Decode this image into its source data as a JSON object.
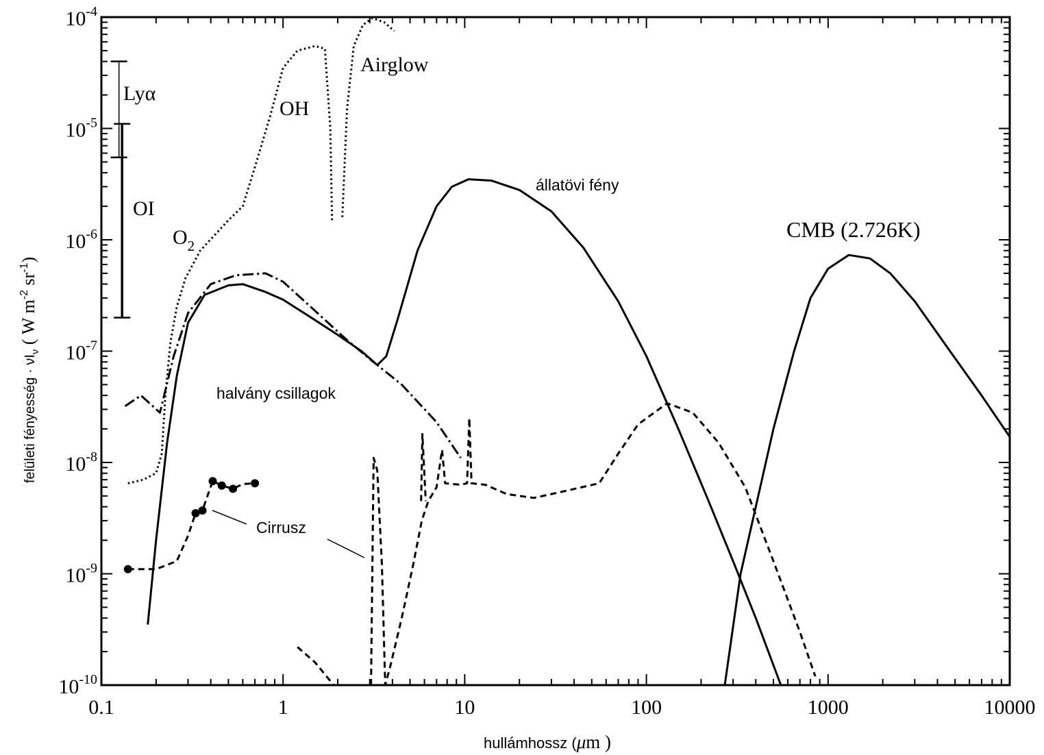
{
  "chart_data": {
    "type": "line",
    "x_scale": "log",
    "y_scale": "log",
    "xlim": [
      0.1,
      10000
    ],
    "ylim": [
      1e-10,
      0.0001
    ],
    "xlabel": {
      "pre": "hullámhossz (",
      "mu": "μ",
      "post": "m )"
    },
    "ylabel": {
      "pre": "felületi fényesség · νI",
      "sub": "ν",
      "mid": " ( W m",
      "sup1": "-2",
      "mid2": " sr",
      "sup2": "-1",
      "post": ")"
    },
    "xticks": [
      {
        "value": 0.1,
        "label": "0.1"
      },
      {
        "value": 1,
        "label": "1"
      },
      {
        "value": 10,
        "label": "10"
      },
      {
        "value": 100,
        "label": "100"
      },
      {
        "value": 1000,
        "label": "1000"
      },
      {
        "value": 10000,
        "label": "10000"
      }
    ],
    "yticks": [
      {
        "value": 0.0001,
        "base": "10",
        "exp": "-4"
      },
      {
        "value": 1e-05,
        "base": "10",
        "exp": "-5"
      },
      {
        "value": 1e-06,
        "base": "10",
        "exp": "-6"
      },
      {
        "value": 1e-07,
        "base": "10",
        "exp": "-7"
      },
      {
        "value": 1e-08,
        "base": "10",
        "exp": "-8"
      },
      {
        "value": 1e-09,
        "base": "10",
        "exp": "-9"
      },
      {
        "value": 1e-10,
        "base": "10",
        "exp": "-10"
      }
    ],
    "annotations": {
      "lya": "Lyα",
      "oi": "OI",
      "o2": {
        "base": "O",
        "sub": "2"
      },
      "oh": "OH",
      "airglow": "Airglow",
      "zodiacal": "állatövi fény",
      "cmb": "CMB (2.726K)",
      "faint_stars": "halvány csillagok",
      "cirrus": "Cirrusz"
    },
    "series": [
      {
        "key": "airglow",
        "style": "dotted",
        "segments": [
          [
            [
              0.14,
              6.5e-09
            ],
            [
              0.17,
              7e-09
            ],
            [
              0.2,
              8e-09
            ],
            [
              0.215,
              1.2e-08
            ],
            [
              0.225,
              4e-08
            ],
            [
              0.24,
              1.2e-07
            ],
            [
              0.26,
              2.5e-07
            ],
            [
              0.29,
              4.5e-07
            ],
            [
              0.35,
              8e-07
            ],
            [
              0.42,
              1.1e-06
            ],
            [
              0.5,
              1.5e-06
            ],
            [
              0.6,
              2e-06
            ],
            [
              0.7,
              4.5e-06
            ],
            [
              0.85,
              1.3e-05
            ],
            [
              1.0,
              3.5e-05
            ],
            [
              1.2,
              5e-05
            ],
            [
              1.5,
              5.5e-05
            ],
            [
              1.7,
              5.2e-05
            ],
            [
              1.82,
              1e-05
            ],
            [
              1.86,
              1.5e-06
            ]
          ],
          [
            [
              2.12,
              1.6e-06
            ],
            [
              2.25,
              1.5e-05
            ],
            [
              2.45,
              5.5e-05
            ],
            [
              2.75,
              8.5e-05
            ],
            [
              3.1,
              9.8e-05
            ],
            [
              3.6,
              9e-05
            ],
            [
              4.1,
              7.5e-05
            ]
          ]
        ]
      },
      {
        "key": "faint_stars",
        "style": "dashdot",
        "segments": [
          [
            [
              0.135,
              3.2e-08
            ],
            [
              0.165,
              4e-08
            ],
            [
              0.21,
              2.8e-08
            ],
            [
              0.25,
              9e-08
            ],
            [
              0.3,
              2.2e-07
            ],
            [
              0.4,
              4e-07
            ],
            [
              0.55,
              4.8e-07
            ],
            [
              0.8,
              5e-07
            ],
            [
              1.0,
              4.2e-07
            ],
            [
              1.5,
              2.3e-07
            ],
            [
              2.2,
              1.3e-07
            ],
            [
              3.0,
              8.5e-08
            ],
            [
              4.5,
              5e-08
            ],
            [
              7.0,
              2.3e-08
            ],
            [
              9.5,
              1.1e-08
            ]
          ]
        ]
      },
      {
        "key": "faint_stars_solid",
        "style": "solid",
        "segments": [
          [
            [
              0.18,
              3.5e-10
            ],
            [
              0.2,
              2e-09
            ],
            [
              0.23,
              1.5e-08
            ],
            [
              0.26,
              6e-08
            ],
            [
              0.3,
              1.8e-07
            ],
            [
              0.37,
              3.2e-07
            ],
            [
              0.5,
              3.9e-07
            ],
            [
              0.6,
              4e-07
            ],
            [
              0.8,
              3.4e-07
            ],
            [
              1.0,
              2.9e-07
            ],
            [
              1.5,
              1.9e-07
            ],
            [
              2.0,
              1.4e-07
            ],
            [
              2.7,
              1e-07
            ],
            [
              3.3,
              7.5e-08
            ]
          ]
        ]
      },
      {
        "key": "zodiacal",
        "style": "solid",
        "segments": [
          [
            [
              3.3,
              7.5e-08
            ],
            [
              3.7,
              9e-08
            ],
            [
              4.3,
              2e-07
            ],
            [
              5.5,
              8e-07
            ],
            [
              7,
              2e-06
            ],
            [
              8.5,
              3e-06
            ],
            [
              10.5,
              3.5e-06
            ],
            [
              14,
              3.4e-06
            ],
            [
              20,
              2.8e-06
            ],
            [
              30,
              1.8e-06
            ],
            [
              45,
              8.5e-07
            ],
            [
              70,
              2.8e-07
            ],
            [
              100,
              9e-08
            ],
            [
              150,
              2e-08
            ],
            [
              220,
              4.5e-09
            ],
            [
              300,
              1.3e-09
            ],
            [
              400,
              4e-10
            ],
            [
              550,
              1e-10
            ]
          ]
        ]
      },
      {
        "key": "cmb",
        "style": "solid",
        "segments": [
          [
            [
              270,
              1e-10
            ],
            [
              330,
              1e-09
            ],
            [
              400,
              4e-09
            ],
            [
              500,
              2e-08
            ],
            [
              650,
              1e-07
            ],
            [
              800,
              3e-07
            ],
            [
              1000,
              5.5e-07
            ],
            [
              1300,
              7.3e-07
            ],
            [
              1700,
              6.8e-07
            ],
            [
              2200,
              5e-07
            ],
            [
              3000,
              2.8e-07
            ],
            [
              4500,
              1.1e-07
            ],
            [
              7000,
              4e-08
            ],
            [
              10000,
              1.7e-08
            ]
          ]
        ]
      },
      {
        "key": "cirrus",
        "style": "dashed",
        "segments": [
          [
            [
              0.14,
              1.1e-09
            ],
            [
              0.2,
              1.1e-09
            ],
            [
              0.26,
              1.3e-09
            ],
            [
              0.3,
              2.2e-09
            ],
            [
              0.33,
              3.5e-09
            ],
            [
              0.36,
              3.7e-09
            ],
            [
              0.38,
              4.8e-09
            ],
            [
              0.41,
              6.8e-09
            ],
            [
              0.46,
              6.2e-09
            ],
            [
              0.53,
              5.8e-09
            ],
            [
              0.6,
              6.4e-09
            ],
            [
              0.7,
              6.5e-09
            ]
          ],
          [
            [
              1.2,
              2.2e-10
            ],
            [
              1.5,
              1.6e-10
            ],
            [
              1.9,
              1e-10
            ]
          ],
          [
            [
              3.05,
              1e-10
            ],
            [
              3.15,
              1.1e-08
            ],
            [
              3.3,
              8.5e-09
            ],
            [
              3.5,
              1.2e-09
            ],
            [
              3.65,
              1e-10
            ],
            [
              3.9,
              1.5e-10
            ],
            [
              4.5,
              4e-10
            ],
            [
              5.2,
              1.2e-09
            ],
            [
              5.8,
              3e-09
            ],
            [
              6.3,
              4.5e-09
            ],
            [
              7.0,
              6e-09
            ],
            [
              7.5,
              1.3e-08
            ],
            [
              7.8,
              6.5e-09
            ],
            [
              9.5,
              6.3e-09
            ],
            [
              10.3,
              6.5e-09
            ],
            [
              10.6,
              2.5e-08
            ],
            [
              10.9,
              6.5e-09
            ],
            [
              13,
              6.3e-09
            ],
            [
              17,
              5.2e-09
            ],
            [
              24,
              4.8e-09
            ],
            [
              35,
              5.5e-09
            ],
            [
              55,
              6.5e-09
            ],
            [
              70,
              1.2e-08
            ],
            [
              90,
              2.2e-08
            ],
            [
              130,
              3.4e-08
            ],
            [
              180,
              2.8e-08
            ],
            [
              250,
              1.5e-08
            ],
            [
              350,
              6e-09
            ],
            [
              500,
              1.3e-09
            ],
            [
              700,
              3e-10
            ],
            [
              850,
              1.2e-10
            ]
          ],
          [
            [
              5.75,
              4.5e-09
            ],
            [
              5.85,
              1.8e-08
            ],
            [
              6.1,
              4.5e-09
            ]
          ]
        ]
      }
    ],
    "dots": [
      [
        0.14,
        1.1e-09
      ],
      [
        0.33,
        3.5e-09
      ],
      [
        0.36,
        3.7e-09
      ],
      [
        0.41,
        6.8e-09
      ],
      [
        0.46,
        6.2e-09
      ],
      [
        0.53,
        5.8e-09
      ],
      [
        0.7,
        6.5e-09
      ]
    ],
    "error_bars": [
      {
        "key": "lya",
        "x": 0.125,
        "low": 5.5e-06,
        "high": 4e-05
      },
      {
        "key": "oi",
        "x": 0.13,
        "low": 2e-07,
        "high": 1.1e-05
      }
    ]
  }
}
